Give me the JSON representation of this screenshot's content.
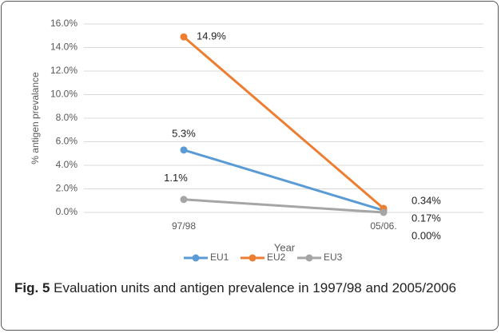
{
  "chart_data": {
    "type": "line",
    "y_label": "% antigen prevalance",
    "x_label": "Year",
    "categories": [
      "97/98",
      "05/06."
    ],
    "series": [
      {
        "name": "EU1",
        "color": "#5b9bd5",
        "values": [
          5.3,
          0.17
        ],
        "value_labels": [
          "5.3%",
          "0.17%"
        ]
      },
      {
        "name": "EU2",
        "color": "#ed7d31",
        "values": [
          14.9,
          0.34
        ],
        "value_labels": [
          "14.9%",
          "0.34%"
        ]
      },
      {
        "name": "EU3",
        "color": "#a5a5a5",
        "values": [
          1.1,
          0.0
        ],
        "value_labels": [
          "1.1%",
          "0.00%"
        ]
      }
    ],
    "ylim": [
      0,
      16
    ],
    "yticks": [
      {
        "value": 0,
        "label": "0.0%"
      },
      {
        "value": 2,
        "label": "2.0%"
      },
      {
        "value": 4,
        "label": "4.0%"
      },
      {
        "value": 6,
        "label": "6.0%"
      },
      {
        "value": 8,
        "label": "8.0%"
      },
      {
        "value": 10,
        "label": "10.0%"
      },
      {
        "value": 12,
        "label": "12.0%"
      },
      {
        "value": 14,
        "label": "14.0%"
      },
      {
        "value": 16,
        "label": "16.0%"
      }
    ],
    "grid": true,
    "legend": "bottom"
  },
  "caption": {
    "label": "Fig. 5",
    "text": "Evaluation units and antigen prevalence in 1997/98 and 2005/2006"
  }
}
